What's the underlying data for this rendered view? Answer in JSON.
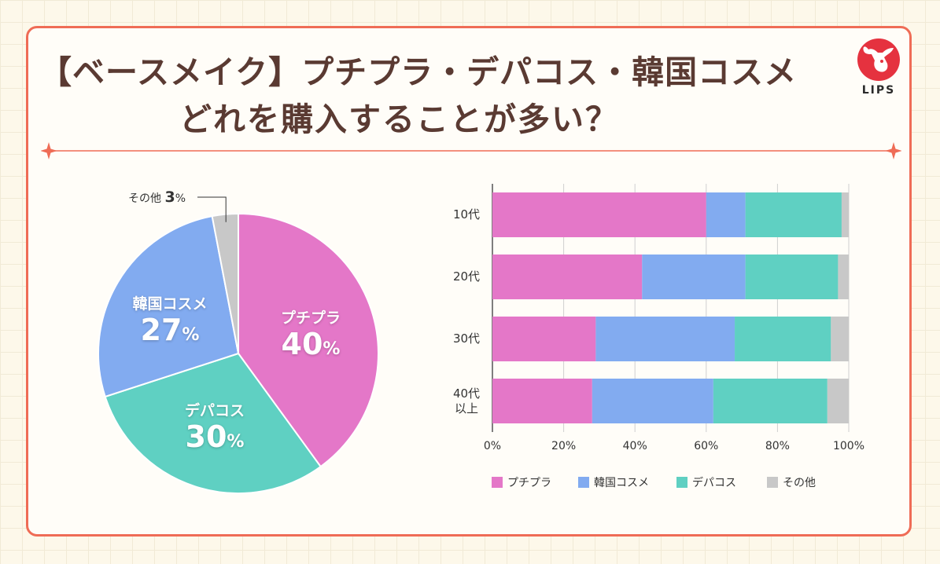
{
  "title": {
    "line1": "【ベースメイク】プチプラ・デパコス・韓国コスメ",
    "line2": "どれを購入することが多い？"
  },
  "logo": {
    "text": "LIPS"
  },
  "colors": {
    "petit": "#e477c8",
    "korean": "#82abf0",
    "depa": "#5fd0c2",
    "other": "#c8c8c8",
    "border": "#ef6c56",
    "title": "#5a3a32"
  },
  "chart_data": [
    {
      "type": "pie",
      "slices": [
        {
          "name": "プチプラ",
          "value": 40,
          "label": "40",
          "unit": "%"
        },
        {
          "name": "デパコス",
          "value": 30,
          "label": "30",
          "unit": "%"
        },
        {
          "name": "韓国コスメ",
          "value": 27,
          "label": "27",
          "unit": "%"
        },
        {
          "name": "その他",
          "value": 3,
          "label": "3",
          "unit": "%"
        }
      ]
    },
    {
      "type": "bar",
      "orientation": "horizontal",
      "stacked": true,
      "categories": [
        "10代",
        "20代",
        "30代",
        "40代\n以上"
      ],
      "series": [
        {
          "name": "プチプラ",
          "values": [
            60,
            42,
            29,
            28
          ]
        },
        {
          "name": "韓国コスメ",
          "values": [
            11,
            29,
            39,
            34
          ]
        },
        {
          "name": "デパコス",
          "values": [
            27,
            26,
            27,
            32
          ]
        },
        {
          "name": "その他",
          "values": [
            2,
            3,
            5,
            6
          ]
        }
      ],
      "xlim": [
        0,
        100
      ],
      "xticks": [
        "0%",
        "20%",
        "40%",
        "60%",
        "80%",
        "100%"
      ],
      "grid": true,
      "legend": "bottom"
    }
  ]
}
